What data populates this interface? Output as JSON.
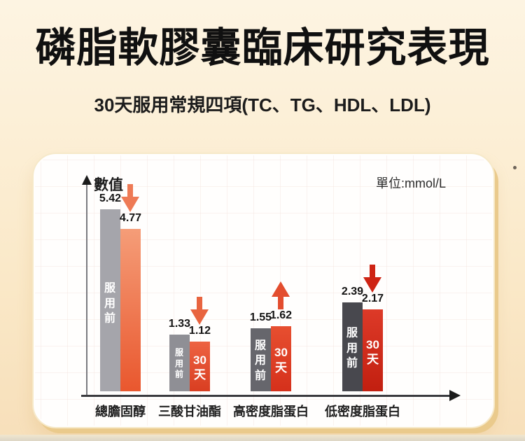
{
  "header": {
    "title": "磷脂軟膠囊臨床研究表現",
    "subtitle": "30天服用常規四項(TC、TG、HDL、LDL)"
  },
  "chart_data": {
    "type": "bar",
    "title": "磷脂軟膠囊臨床研究表現",
    "subtitle": "30天服用常規四項(TC、TG、HDL、LDL)",
    "unit_label": "單位:mmol/L",
    "y_axis_label": "數值",
    "series_names": [
      "服用前",
      "30天"
    ],
    "categories": [
      "總膽固醇",
      "三酸甘油酯",
      "高密度脂蛋白",
      "低密度脂蛋白"
    ],
    "ylim": [
      0,
      6
    ],
    "grid": true,
    "legend_position": "none",
    "groups": [
      {
        "category": "總膽固醇",
        "before": 5.42,
        "after": 4.77,
        "trend": "down",
        "before_inner_label": "服\n用\n前",
        "after_inner_label": "",
        "colors": {
          "before": "#a5a5ab",
          "after_top": "#f59d78",
          "after_bottom": "#e9572e",
          "arrow": "#ee7a55"
        }
      },
      {
        "category": "三酸甘油酯",
        "before": 1.33,
        "after": 1.12,
        "trend": "down",
        "before_inner_label": "服\n用\n前",
        "after_inner_label": "30\n天",
        "colors": {
          "before": "#8f8f95",
          "after_top": "#ed6342",
          "after_bottom": "#d93e21",
          "arrow": "#e8643f"
        }
      },
      {
        "category": "高密度脂蛋白",
        "before": 1.55,
        "after": 1.62,
        "trend": "up",
        "before_inner_label": "服\n用\n前",
        "after_inner_label": "30\n天",
        "colors": {
          "before": "#66666c",
          "after_top": "#e74f30",
          "after_bottom": "#d5301b",
          "arrow": "#e34d2e"
        }
      },
      {
        "category": "低密度脂蛋白",
        "before": 2.39,
        "after": 2.17,
        "trend": "down",
        "before_inner_label": "服\n用\n前",
        "after_inner_label": "30\n天",
        "colors": {
          "before": "#48484e",
          "after_top": "#dd3a28",
          "after_bottom": "#c21f10",
          "arrow": "#ce2414"
        }
      }
    ]
  }
}
